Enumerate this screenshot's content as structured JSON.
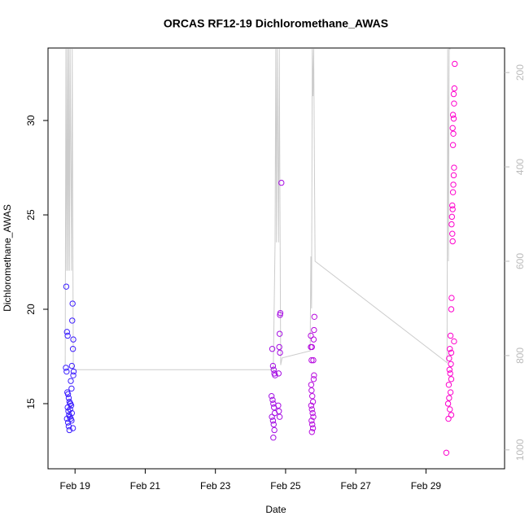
{
  "chart_data": {
    "type": "scatter",
    "title": "ORCAS RF12-19 Dichloromethane_AWAS",
    "x_label": "Date",
    "y_label": "Dichloromethane_AWAS",
    "xlim": [
      18.23,
      31.24
    ],
    "xticks": [
      {
        "value": 19,
        "label": "Feb 19"
      },
      {
        "value": 21,
        "label": "Feb 21"
      },
      {
        "value": 23,
        "label": "Feb 23"
      },
      {
        "value": 25,
        "label": "Feb 25"
      },
      {
        "value": 27,
        "label": "Feb 27"
      },
      {
        "value": 29,
        "label": "Feb 29"
      }
    ],
    "ylim": [
      11.55,
      33.84
    ],
    "yticks": [
      15,
      20,
      25,
      30
    ],
    "y2lim": [
      1040,
      148
    ],
    "y2ticks": [
      200,
      400,
      600,
      800,
      1000
    ],
    "color_scale": [
      "#3a1fff",
      "#ff00cc"
    ],
    "series": [
      {
        "type": "scatter",
        "x": [
          18.75,
          18.77,
          18.79,
          18.74,
          18.76,
          18.78,
          18.8,
          18.82,
          18.84,
          18.86,
          18.79,
          18.81,
          18.83,
          18.85,
          18.77,
          18.8,
          18.82,
          18.84,
          18.93,
          18.92,
          18.95,
          18.94,
          18.91,
          18.96,
          18.95,
          18.88,
          18.9,
          18.87,
          18.89,
          18.86,
          18.91,
          18.88,
          18.94,
          18.9
        ],
        "values": [
          21.2,
          18.8,
          18.6,
          16.9,
          16.7,
          15.6,
          15.5,
          15.3,
          15.1,
          15.0,
          14.8,
          14.6,
          14.4,
          14.3,
          14.2,
          14.0,
          13.8,
          13.6,
          20.3,
          19.4,
          18.4,
          17.9,
          17.0,
          16.7,
          16.5,
          16.2,
          15.8,
          15.0,
          14.9,
          14.7,
          14.5,
          14.2,
          13.7,
          14.1
        ]
      },
      {
        "type": "scatter",
        "x": [
          24.62,
          24.64,
          24.66,
          24.68,
          24.7,
          24.6,
          24.63,
          24.65,
          24.67,
          24.69,
          24.61,
          24.64,
          24.66,
          24.68,
          24.65,
          24.85,
          24.84,
          24.83,
          24.82,
          24.84,
          24.88,
          24.8,
          24.79,
          24.81,
          24.83
        ],
        "values": [
          17.9,
          17.0,
          16.8,
          16.6,
          16.5,
          15.4,
          15.2,
          15.0,
          14.8,
          14.5,
          14.3,
          14.1,
          13.9,
          13.6,
          13.2,
          19.8,
          19.7,
          18.7,
          18.0,
          17.7,
          26.7,
          16.6,
          14.9,
          14.6,
          14.3
        ]
      },
      {
        "type": "scatter",
        "x": [
          25.82,
          25.81,
          25.72,
          25.8,
          25.75,
          25.79,
          25.81,
          25.8,
          25.73,
          25.74,
          25.76,
          25.78,
          25.73,
          25.75,
          25.77,
          25.79,
          25.74,
          25.76,
          25.78,
          25.75,
          25.74,
          25.72
        ],
        "values": [
          19.6,
          18.9,
          18.6,
          18.4,
          18.0,
          17.3,
          16.5,
          16.3,
          16.0,
          15.7,
          15.4,
          15.1,
          14.9,
          14.7,
          14.5,
          14.3,
          14.1,
          13.9,
          13.7,
          13.5,
          17.3,
          18.0
        ]
      },
      {
        "type": "scatter",
        "x": [
          29.82,
          29.81,
          29.79,
          29.8,
          29.77,
          29.79,
          29.76,
          29.78,
          29.77,
          29.8,
          29.79,
          29.78,
          29.77,
          29.75,
          29.76,
          29.74,
          29.73,
          29.75,
          29.76,
          29.73,
          29.72,
          29.7,
          29.8,
          29.68,
          29.72,
          29.66,
          29.71,
          29.67,
          29.69,
          29.72,
          29.65,
          29.7,
          29.66,
          29.63,
          29.68,
          29.72,
          29.64,
          29.58
        ],
        "values": [
          33.0,
          31.7,
          31.4,
          30.9,
          30.3,
          30.1,
          29.6,
          29.3,
          28.7,
          27.5,
          27.1,
          26.6,
          26.2,
          25.5,
          25.3,
          24.9,
          24.5,
          24.0,
          23.6,
          20.6,
          20.0,
          18.6,
          18.3,
          17.9,
          17.7,
          17.4,
          17.1,
          16.8,
          16.6,
          16.3,
          16.0,
          15.6,
          15.3,
          15.0,
          14.7,
          14.4,
          14.2,
          12.4
        ]
      },
      {
        "type": "line",
        "axis": "y2",
        "color": "#cccccc",
        "x": [
          18.72,
          18.74,
          18.76,
          18.78,
          18.8,
          18.82,
          18.84,
          18.86,
          18.9,
          18.92,
          18.95,
          24.65,
          24.7,
          24.72,
          24.74,
          24.76,
          24.8,
          24.82,
          24.86,
          24.9,
          25.7,
          25.72,
          25.74,
          25.76,
          25.78,
          25.8,
          25.84,
          29.6,
          29.62,
          29.64,
          29.66,
          29.7
        ],
        "values": [
          820,
          150,
          620,
          150,
          620,
          150,
          620,
          150,
          620,
          150,
          830,
          830,
          560,
          150,
          560,
          150,
          560,
          150,
          820,
          805,
          790,
          590,
          700,
          150,
          250,
          150,
          600,
          815,
          150,
          600,
          150,
          150
        ]
      }
    ]
  }
}
